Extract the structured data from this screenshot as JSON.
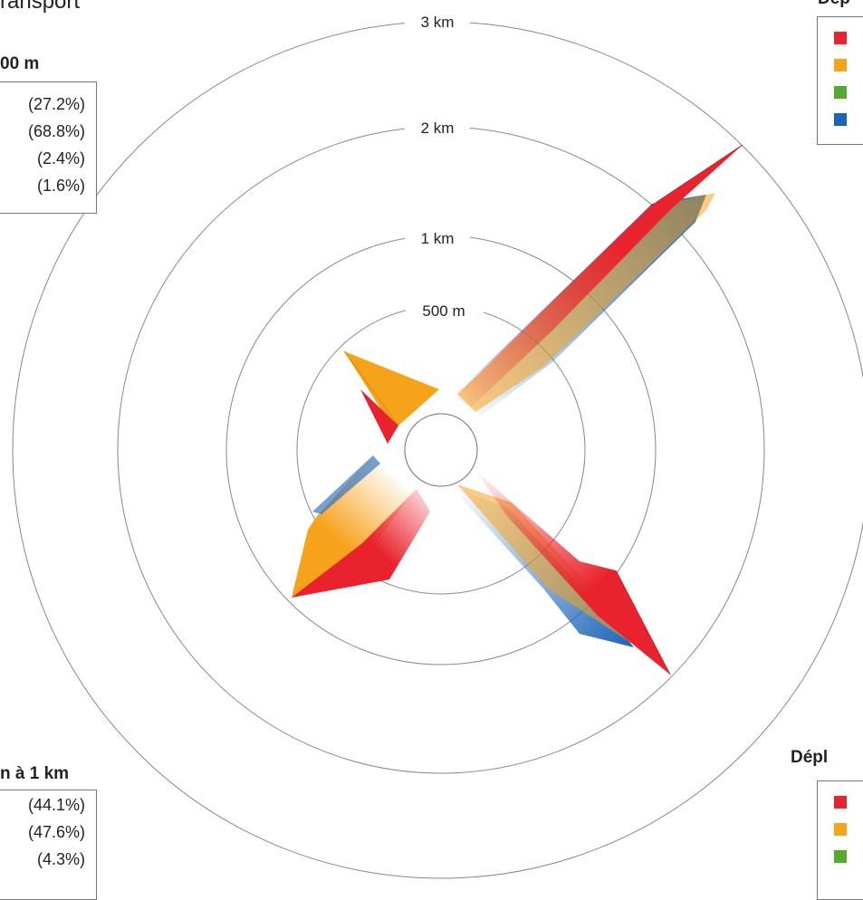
{
  "title_fragment": "ransport",
  "chart_data": {
    "type": "radial",
    "rings": [
      {
        "label": "500 m",
        "radius_m": 500
      },
      {
        "label": "1 km",
        "radius_m": 1000
      },
      {
        "label": "2 km",
        "radius_m": 2000
      },
      {
        "label": "3 km",
        "radius_m": 3000
      }
    ],
    "colors": {
      "red": "#e8232d",
      "orange": "#f7a21b",
      "green": "#55a830",
      "blue": "#1b63b8"
    },
    "groups": [
      {
        "heading": "00 m",
        "percentages": [
          "(27.2%)",
          "(68.8%)",
          "(2.4%)",
          "(1.6%)"
        ],
        "direction": "north-west"
      },
      {
        "heading": "Dép",
        "percentages": [],
        "direction": "north-east"
      },
      {
        "heading": "n à 1 km",
        "percentages": [
          "(44.1%)",
          "(47.6%)",
          "(4.3%)"
        ],
        "direction": "south-west"
      },
      {
        "heading": "Dépl",
        "percentages": [],
        "direction": "south-east"
      }
    ]
  }
}
